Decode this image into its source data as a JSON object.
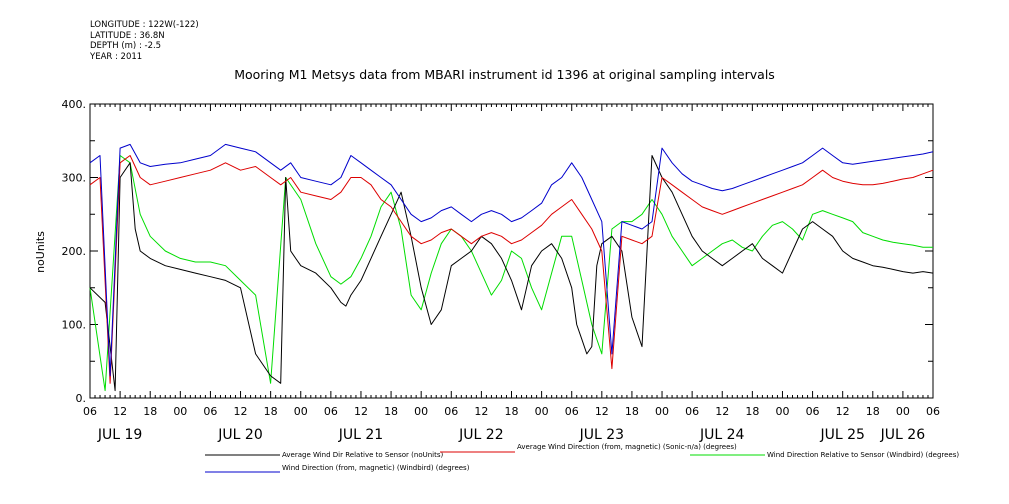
{
  "meta": {
    "longitude": "LONGITUDE : 122W(-122)",
    "latitude": "LATITUDE : 36.8N",
    "depth": "DEPTH (m) : -2.5",
    "year": "YEAR : 2011"
  },
  "chart_data": {
    "type": "line",
    "title": "Mooring M1 Metsys data from MBARI instrument id 1396 at original sampling intervals",
    "ylabel": "noUnits",
    "xlabel": "",
    "ylim": [
      0,
      400
    ],
    "y_ticks": [
      "0.",
      "100.",
      "200.",
      "300.",
      "400."
    ],
    "xlim_hours": [
      0,
      168
    ],
    "x_hour_labels": [
      "06",
      "12",
      "18",
      "00",
      "06",
      "12",
      "18",
      "00",
      "06",
      "12",
      "18",
      "00",
      "06",
      "12",
      "18",
      "00",
      "06",
      "12",
      "18",
      "00",
      "06",
      "12",
      "18",
      "00",
      "06",
      "12",
      "18",
      "00",
      "06"
    ],
    "day_labels": [
      "JUL 19",
      "JUL 20",
      "JUL 21",
      "JUL 22",
      "JUL 23",
      "JUL 24",
      "JUL 25",
      "JUL 26"
    ],
    "grid": false,
    "legend_position": "bottom",
    "series": [
      {
        "name": "Average Wind Dir Relative to Sensor (noUnits)",
        "color": "#000000",
        "x": [
          0,
          3,
          5,
          6,
          8,
          9,
          10,
          12,
          15,
          18,
          21,
          24,
          27,
          30,
          33,
          36,
          38,
          39,
          40,
          41,
          42,
          45,
          48,
          50,
          51,
          52,
          54,
          56,
          58,
          60,
          62,
          64,
          66,
          68,
          70,
          72,
          74,
          76,
          78,
          80,
          82,
          84,
          86,
          88,
          90,
          92,
          94,
          96,
          97,
          98,
          99,
          100,
          101,
          102,
          104,
          106,
          108,
          110,
          112,
          114,
          116,
          118,
          120,
          122,
          124,
          126,
          128,
          130,
          132,
          134,
          136,
          138,
          140,
          142,
          144,
          146,
          148,
          150,
          152,
          154,
          156,
          158,
          160,
          162,
          164,
          166,
          168
        ],
        "y": [
          150,
          130,
          10,
          300,
          320,
          230,
          200,
          190,
          180,
          175,
          170,
          165,
          160,
          150,
          60,
          30,
          20,
          300,
          200,
          190,
          180,
          170,
          150,
          130,
          125,
          140,
          160,
          190,
          220,
          250,
          280,
          220,
          150,
          100,
          120,
          180,
          190,
          200,
          220,
          210,
          190,
          160,
          120,
          180,
          200,
          210,
          190,
          150,
          100,
          80,
          60,
          70,
          180,
          210,
          220,
          200,
          110,
          70,
          330,
          300,
          280,
          250,
          220,
          200,
          190,
          180,
          190,
          200,
          210,
          190,
          180,
          170,
          200,
          230,
          240,
          230,
          220,
          200,
          190,
          185,
          180,
          178,
          175,
          172,
          170,
          172,
          170
        ]
      },
      {
        "name": "Average Wind Direction (from, magnetic) (Sonic-n/a) (degrees)",
        "color": "#dd0000",
        "x": [
          0,
          2,
          4,
          6,
          8,
          10,
          12,
          15,
          18,
          21,
          24,
          27,
          30,
          33,
          36,
          38,
          40,
          42,
          45,
          48,
          50,
          52,
          54,
          56,
          58,
          60,
          62,
          64,
          66,
          68,
          70,
          72,
          74,
          76,
          78,
          80,
          82,
          84,
          86,
          88,
          90,
          92,
          94,
          96,
          98,
          100,
          102,
          104,
          106,
          108,
          110,
          112,
          114,
          116,
          118,
          120,
          122,
          124,
          126,
          128,
          130,
          132,
          134,
          136,
          138,
          140,
          142,
          144,
          146,
          148,
          150,
          152,
          154,
          156,
          158,
          160,
          162,
          164,
          166,
          168
        ],
        "y": [
          290,
          300,
          20,
          320,
          330,
          300,
          290,
          295,
          300,
          305,
          310,
          320,
          310,
          315,
          300,
          290,
          300,
          280,
          275,
          270,
          280,
          300,
          300,
          290,
          270,
          260,
          240,
          220,
          210,
          215,
          225,
          230,
          220,
          210,
          220,
          225,
          220,
          210,
          215,
          225,
          235,
          250,
          260,
          270,
          250,
          230,
          200,
          40,
          220,
          215,
          210,
          220,
          300,
          290,
          280,
          270,
          260,
          255,
          250,
          255,
          260,
          265,
          270,
          275,
          280,
          285,
          290,
          300,
          310,
          300,
          295,
          292,
          290,
          290,
          292,
          295,
          298,
          300,
          305,
          310
        ]
      },
      {
        "name": "Wind Direction Relative to Sensor (Windbird) (degrees)",
        "color": "#00dd00",
        "x": [
          0,
          3,
          6,
          8,
          10,
          12,
          15,
          18,
          21,
          24,
          27,
          30,
          33,
          36,
          39,
          42,
          45,
          48,
          50,
          52,
          54,
          56,
          58,
          60,
          62,
          64,
          66,
          68,
          70,
          72,
          74,
          76,
          78,
          80,
          82,
          84,
          86,
          88,
          90,
          92,
          94,
          96,
          98,
          100,
          102,
          104,
          106,
          108,
          110,
          112,
          114,
          116,
          118,
          120,
          122,
          124,
          126,
          128,
          130,
          132,
          134,
          136,
          138,
          140,
          142,
          144,
          146,
          148,
          150,
          152,
          154,
          156,
          158,
          160,
          162,
          164,
          166,
          168
        ],
        "y": [
          150,
          10,
          330,
          320,
          250,
          220,
          200,
          190,
          185,
          185,
          180,
          160,
          140,
          20,
          300,
          270,
          210,
          165,
          155,
          165,
          190,
          220,
          260,
          280,
          230,
          140,
          120,
          170,
          210,
          230,
          220,
          200,
          170,
          140,
          160,
          200,
          190,
          150,
          120,
          170,
          220,
          220,
          160,
          100,
          60,
          230,
          240,
          240,
          250,
          270,
          250,
          220,
          200,
          180,
          190,
          200,
          210,
          215,
          205,
          200,
          220,
          235,
          240,
          230,
          215,
          250,
          255,
          250,
          245,
          240,
          225,
          220,
          215,
          212,
          210,
          208,
          205,
          205
        ]
      },
      {
        "name": "Wind Direction (from, magnetic) (Windbird) (degrees)",
        "color": "#0000cc",
        "x": [
          0,
          2,
          4,
          6,
          8,
          10,
          12,
          15,
          18,
          21,
          24,
          27,
          30,
          33,
          36,
          38,
          40,
          42,
          45,
          48,
          50,
          52,
          54,
          56,
          58,
          60,
          62,
          64,
          66,
          68,
          70,
          72,
          74,
          76,
          78,
          80,
          82,
          84,
          86,
          88,
          90,
          92,
          94,
          96,
          98,
          100,
          102,
          104,
          106,
          108,
          110,
          112,
          114,
          116,
          118,
          120,
          122,
          124,
          126,
          128,
          130,
          132,
          134,
          136,
          138,
          140,
          142,
          144,
          146,
          148,
          150,
          152,
          154,
          156,
          158,
          160,
          162,
          164,
          166,
          168
        ],
        "y": [
          320,
          330,
          30,
          340,
          345,
          320,
          315,
          318,
          320,
          325,
          330,
          345,
          340,
          335,
          320,
          310,
          320,
          300,
          295,
          290,
          300,
          330,
          320,
          310,
          300,
          290,
          270,
          250,
          240,
          245,
          255,
          260,
          250,
          240,
          250,
          255,
          250,
          240,
          245,
          255,
          265,
          290,
          300,
          320,
          300,
          270,
          240,
          60,
          240,
          235,
          230,
          240,
          340,
          320,
          305,
          295,
          290,
          285,
          282,
          285,
          290,
          295,
          300,
          305,
          310,
          315,
          320,
          330,
          340,
          330,
          320,
          318,
          320,
          322,
          324,
          326,
          328,
          330,
          332,
          335
        ]
      }
    ]
  }
}
